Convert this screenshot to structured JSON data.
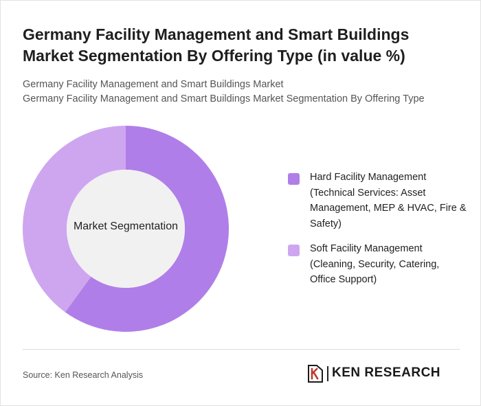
{
  "title": "Germany Facility Management and Smart Buildings Market Segmentation By Offering Type (in value %)",
  "subtitle_line1": "Germany Facility Management and Smart Buildings Market",
  "subtitle_line2": "Germany Facility Management and Smart Buildings Market Segmentation By Offering Type",
  "source": "Source: Ken Research Analysis",
  "logo": {
    "text": "KEN RESEARCH",
    "icon": "ken-research-logo-icon"
  },
  "chart_data": {
    "type": "pie",
    "variant": "donut",
    "center_label": "Market Segmentation",
    "categories": [
      "Hard Facility Management (Technical Services: Asset Management, MEP & HVAC, Fire & Safety)",
      "Soft Facility Management (Cleaning, Security, Catering, Office Support)"
    ],
    "values": [
      60,
      40
    ],
    "colors": [
      "#b07ee8",
      "#cea6f0"
    ],
    "start_angle_deg": 0,
    "legend_position": "right"
  }
}
